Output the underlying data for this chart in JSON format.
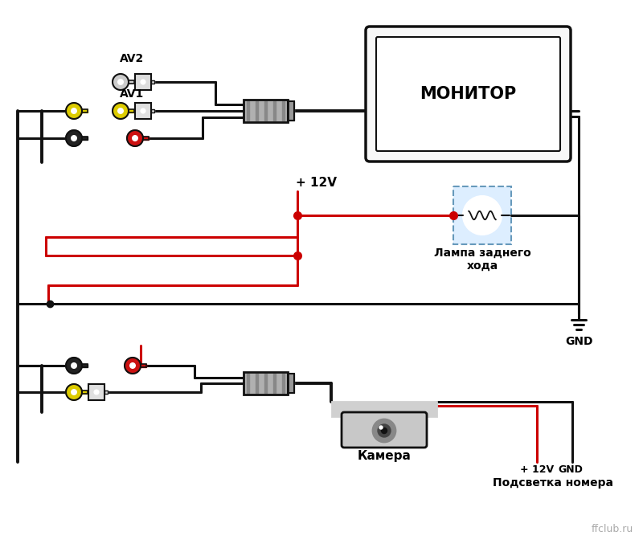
{
  "bg_color": "#ffffff",
  "fig_width": 8.0,
  "fig_height": 6.82,
  "dpi": 100,
  "watermark": "ffclub.ru",
  "monitor_label": "МОНИТОР",
  "lamp_label": "Лампа заднего\nхода",
  "camera_label": "Камера",
  "gnd_label": "GND",
  "plus12v_label": "+ 12V",
  "av1_label": "AV1",
  "av2_label": "AV2",
  "light_label": "Подсветка номера",
  "plus12v_bottom_label": "+ 12V",
  "wire_black": "#111111",
  "wire_red": "#cc0000",
  "lamp_box_color": "#6699bb",
  "lamp_bg": "#ddeeff"
}
